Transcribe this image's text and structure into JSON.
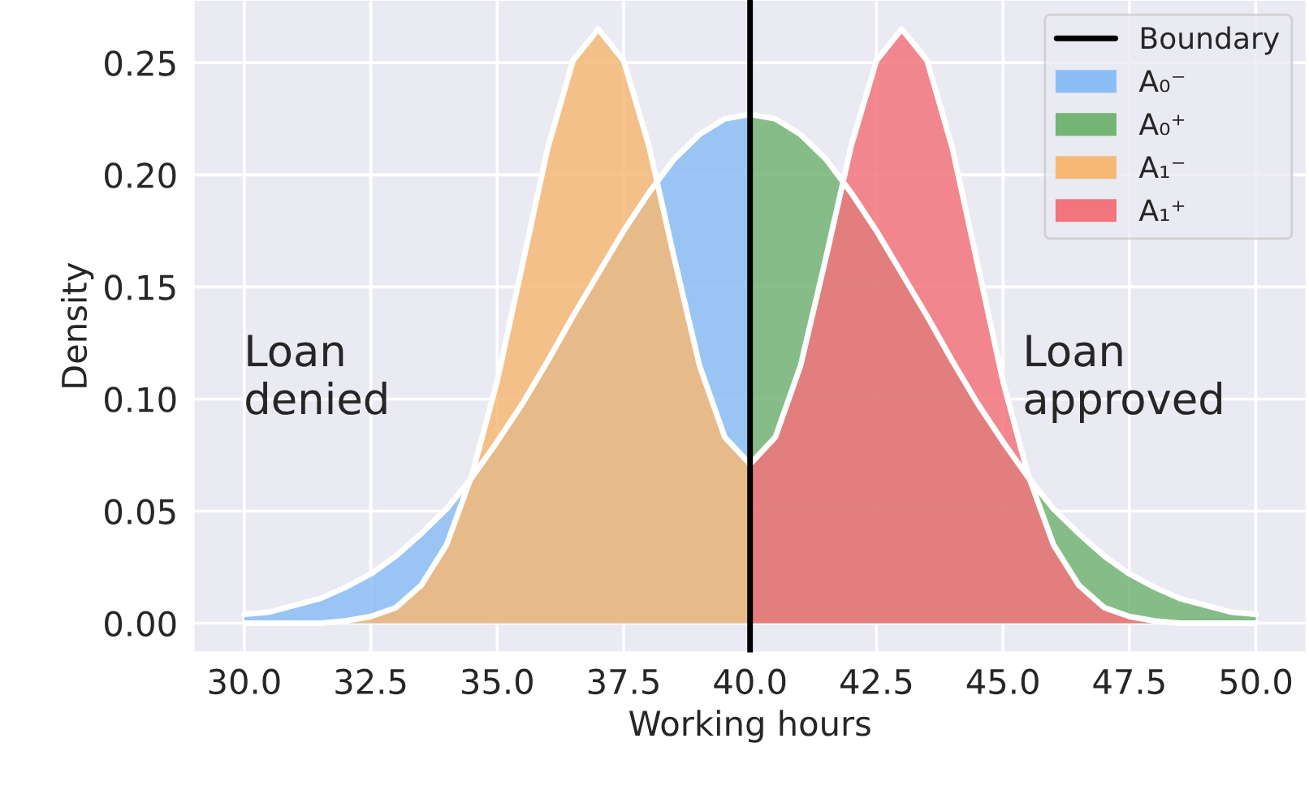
{
  "chart_data": {
    "type": "area",
    "xlabel": "Working hours",
    "ylabel": "Density",
    "xlim": [
      29,
      51
    ],
    "ylim": [
      -0.013,
      0.278
    ],
    "xticks": [
      {
        "value": 30,
        "label": "30.0"
      },
      {
        "value": 32.5,
        "label": "32.5"
      },
      {
        "value": 35,
        "label": "35.0"
      },
      {
        "value": 37.5,
        "label": "37.5"
      },
      {
        "value": 40,
        "label": "40.0"
      },
      {
        "value": 42.5,
        "label": "42.5"
      },
      {
        "value": 45,
        "label": "45.0"
      },
      {
        "value": 47.5,
        "label": "47.5"
      },
      {
        "value": 50,
        "label": "50.0"
      }
    ],
    "yticks": [
      {
        "value": 0,
        "label": "0.00"
      },
      {
        "value": 0.05,
        "label": "0.05"
      },
      {
        "value": 0.1,
        "label": "0.10"
      },
      {
        "value": 0.15,
        "label": "0.15"
      },
      {
        "value": 0.2,
        "label": "0.20"
      },
      {
        "value": 0.25,
        "label": "0.25"
      }
    ],
    "grid": true,
    "legend": "top right",
    "annotations": [
      "Loan\ndenied",
      "Loan\napproved"
    ],
    "series": [
      {
        "name": "Boundary",
        "type": "line",
        "color": "#000000",
        "x": [
          40,
          40
        ],
        "values": [
          -0.013,
          0.278
        ]
      },
      {
        "name": "A₀⁻",
        "color": "#8bbdf5",
        "x": [
          30,
          30.5,
          31,
          31.5,
          32,
          32.5,
          33,
          33.5,
          34,
          34.5,
          35,
          35.5,
          36,
          36.5,
          37,
          37.5,
          38,
          38.5,
          39,
          39.5,
          40
        ],
        "values": [
          0.004,
          0.005,
          0.008,
          0.011,
          0.016,
          0.022,
          0.03,
          0.04,
          0.051,
          0.065,
          0.081,
          0.098,
          0.117,
          0.137,
          0.156,
          0.175,
          0.192,
          0.207,
          0.218,
          0.225,
          0.227
        ]
      },
      {
        "name": "A₀⁺",
        "color": "#74b474",
        "x": [
          40,
          40.5,
          41,
          41.5,
          42,
          42.5,
          43,
          43.5,
          44,
          44.5,
          45,
          45.5,
          46,
          46.5,
          47,
          47.5,
          48,
          48.5,
          49,
          49.5,
          50
        ],
        "values": [
          0.227,
          0.225,
          0.218,
          0.207,
          0.192,
          0.175,
          0.156,
          0.137,
          0.117,
          0.098,
          0.081,
          0.065,
          0.051,
          0.04,
          0.03,
          0.022,
          0.016,
          0.011,
          0.008,
          0.005,
          0.004
        ]
      },
      {
        "name": "A₁⁻",
        "color": "#f5b877",
        "x": [
          30,
          30.5,
          31,
          31.5,
          32,
          32.5,
          33,
          33.5,
          34,
          34.5,
          35,
          35.5,
          36,
          36.5,
          37,
          37.5,
          38,
          38.5,
          39,
          39.5,
          40
        ],
        "values": [
          0.0,
          0.0,
          0.0,
          0.0,
          0.001,
          0.003,
          0.007,
          0.017,
          0.035,
          0.066,
          0.108,
          0.16,
          0.212,
          0.251,
          0.265,
          0.251,
          0.213,
          0.163,
          0.115,
          0.083,
          0.071
        ]
      },
      {
        "name": "A₁⁺",
        "color": "#f2747c",
        "x": [
          40,
          40.5,
          41,
          41.5,
          42,
          42.5,
          43,
          43.5,
          44,
          44.5,
          45,
          45.5,
          46,
          46.5,
          47,
          47.5,
          48,
          48.5,
          49,
          49.5,
          50
        ],
        "values": [
          0.071,
          0.083,
          0.115,
          0.163,
          0.213,
          0.251,
          0.265,
          0.251,
          0.212,
          0.16,
          0.108,
          0.066,
          0.035,
          0.017,
          0.007,
          0.003,
          0.001,
          0.0,
          0.0,
          0.0,
          0.0
        ]
      }
    ]
  }
}
